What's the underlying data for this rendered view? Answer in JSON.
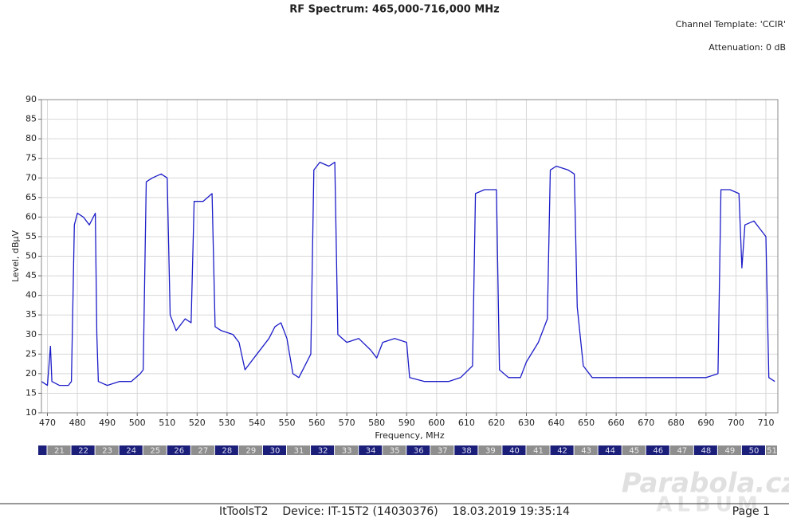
{
  "header": {
    "title": "RF Spectrum: 465,000-716,000 MHz",
    "template": "Channel Template: 'CCIR'",
    "attenuation": "Attenuation: 0 dB"
  },
  "chart_data": {
    "type": "line",
    "xlabel": "Frequency, MHz",
    "ylabel": "Level, dBµV",
    "color": "#1c1cc8",
    "grid": true,
    "xlim": [
      468,
      714
    ],
    "ylim": [
      10,
      90
    ],
    "xticks": [
      470,
      480,
      490,
      500,
      510,
      520,
      530,
      540,
      550,
      560,
      570,
      580,
      590,
      600,
      610,
      620,
      630,
      640,
      650,
      660,
      670,
      680,
      690,
      700,
      710
    ],
    "yticks": [
      10,
      15,
      20,
      25,
      30,
      35,
      40,
      45,
      50,
      55,
      60,
      65,
      70,
      75,
      80,
      85,
      90
    ],
    "x": [
      468,
      470,
      471,
      471.5,
      474,
      477,
      478,
      479,
      480,
      482,
      484,
      486,
      486.5,
      487,
      490,
      494,
      498,
      501,
      502,
      503,
      505,
      508,
      510,
      511,
      513,
      516,
      518,
      519,
      522,
      525,
      526,
      528,
      532,
      534,
      536,
      540,
      544,
      546,
      548,
      550,
      552,
      554,
      556,
      558,
      559,
      561,
      564,
      566,
      567,
      570,
      574,
      578,
      580,
      582,
      586,
      590,
      591,
      596,
      600,
      604,
      608,
      612,
      613,
      616,
      620,
      621,
      624,
      628,
      630,
      634,
      637,
      638,
      640,
      644,
      646,
      647,
      649,
      652,
      660,
      670,
      680,
      690,
      694,
      695,
      698,
      701,
      702,
      703,
      706,
      708,
      710,
      711,
      713
    ],
    "values": [
      18,
      17,
      27,
      18,
      17,
      17,
      18,
      58,
      61,
      60,
      58,
      61,
      30,
      18,
      17,
      18,
      18,
      20,
      21,
      69,
      70,
      71,
      70,
      35,
      31,
      34,
      33,
      64,
      64,
      66,
      32,
      31,
      30,
      28,
      21,
      25,
      29,
      32,
      33,
      29,
      20,
      19,
      22,
      25,
      72,
      74,
      73,
      74,
      30,
      28,
      29,
      26,
      24,
      28,
      29,
      28,
      19,
      18,
      18,
      18,
      19,
      22,
      66,
      67,
      67,
      21,
      19,
      19,
      23,
      28,
      34,
      72,
      73,
      72,
      71,
      37,
      22,
      19,
      19,
      19,
      19,
      19,
      20,
      67,
      67,
      66,
      47,
      58,
      59,
      57,
      55,
      19,
      18
    ],
    "channels": {
      "labels": [
        null,
        "21",
        "22",
        "23",
        "24",
        "25",
        "26",
        "27",
        "28",
        "29",
        "30",
        "31",
        "32",
        "33",
        "34",
        "35",
        "36",
        "37",
        "38",
        "39",
        "40",
        "41",
        "42",
        "43",
        "44",
        "45",
        "46",
        "47",
        "48",
        "49",
        "50",
        "51"
      ],
      "start": 462,
      "width": 8,
      "colors": [
        "#1b1f7a",
        "#8e8e8e"
      ]
    }
  },
  "footer": {
    "text": "ItToolsT2    Device: IT-15T2 (14030376)    18.03.2019 19:35:14",
    "page": "Page 1",
    "watermark": "Parabola.cz",
    "watermark2": "ALBUM"
  }
}
